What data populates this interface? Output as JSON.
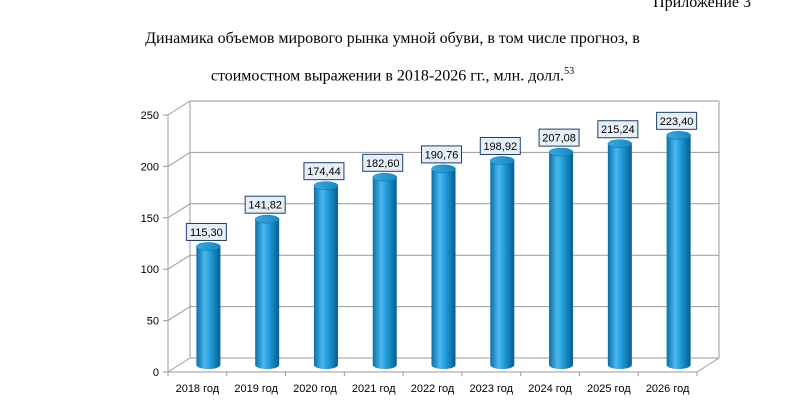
{
  "header": {
    "appendix": "Приложение 3",
    "title_line1": "Динамика объемов мирового рынка умной обуви, в том числе прогноз, в",
    "title_line2": "стоимостном выражении в 2018-2026 гг., млн. долл.",
    "footnote_ref": "53"
  },
  "chart_data": {
    "type": "bar",
    "title": "Динамика объемов мирового рынка умной обуви, в том числе прогноз, в стоимостном выражении в 2018-2026 гг., млн. долл.",
    "categories": [
      "2018 год",
      "2019 год",
      "2020 год",
      "2021 год",
      "2022 год",
      "2023 год",
      "2024 год",
      "2025 год",
      "2026 год"
    ],
    "values": [
      115.3,
      141.82,
      174.44,
      182.6,
      190.76,
      198.92,
      207.08,
      215.24,
      223.4
    ],
    "data_labels": [
      "115,30",
      "141,82",
      "174,44",
      "182,60",
      "190,76",
      "198,92",
      "207,08",
      "215,24",
      "223,40"
    ],
    "xlabel": "",
    "ylabel": "",
    "ylim": [
      0,
      250
    ],
    "yticks": [
      "0",
      "50",
      "100",
      "150",
      "200",
      "250"
    ],
    "grid": true,
    "style": "3d-cylinder",
    "colors": {
      "bar": "#1e9ad6",
      "bar_dark": "#0a6fa8",
      "bar_light": "#6fcaf5",
      "grid": "#9a9a9a",
      "label_bg": "#e6eef8",
      "label_border": "#1f3f6b"
    }
  }
}
